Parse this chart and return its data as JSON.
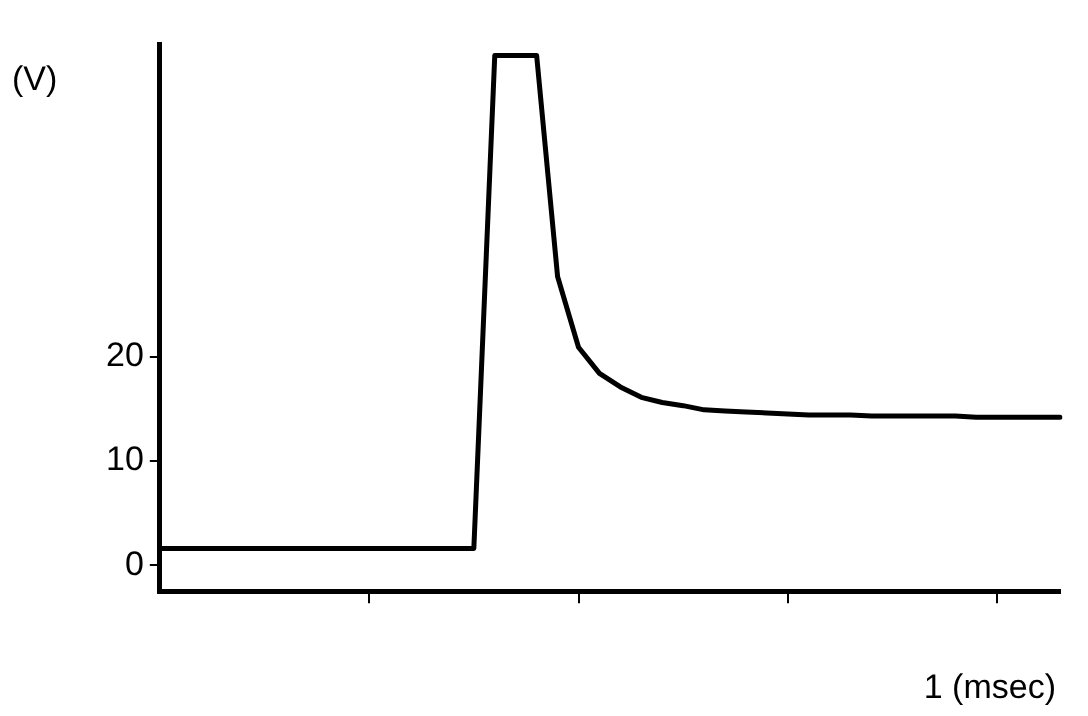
{
  "chart_data": {
    "type": "line",
    "ylabel": "(V)",
    "categories": [
      null,
      null,
      null,
      null,
      null,
      null,
      null,
      null,
      null,
      null,
      null,
      null,
      null,
      null,
      null,
      null,
      null,
      null,
      null,
      null,
      null,
      null,
      null,
      null,
      null,
      null,
      null,
      null,
      null,
      null,
      null,
      null,
      null,
      null,
      null,
      null,
      null,
      null,
      null,
      null,
      null,
      null,
      null,
      null
    ],
    "series": [
      {
        "color": "#000000",
        "values": [
          1.6,
          1.6,
          1.6,
          1.6,
          1.6,
          1.6,
          1.6,
          1.6,
          1.6,
          1.6,
          1.6,
          1.6,
          1.6,
          1.6,
          1.6,
          1.6,
          48.9,
          48.9,
          48.9,
          27.7,
          20.9,
          18.4,
          17.1,
          16.1,
          15.6,
          15.3,
          14.9,
          14.8,
          14.7,
          14.6,
          14.5,
          14.4,
          14.4,
          14.4,
          14.3,
          14.3,
          14.3,
          14.3,
          14.3,
          14.2,
          14.2,
          14.2,
          14.2,
          14.2
        ]
      }
    ],
    "annotations": [
      "1 (msec)"
    ],
    "ylim": [
      -2.5,
      50
    ],
    "yticks": [
      0,
      10,
      20
    ],
    "grid": false,
    "legend": false,
    "marker": "none",
    "line_style": "solid"
  }
}
